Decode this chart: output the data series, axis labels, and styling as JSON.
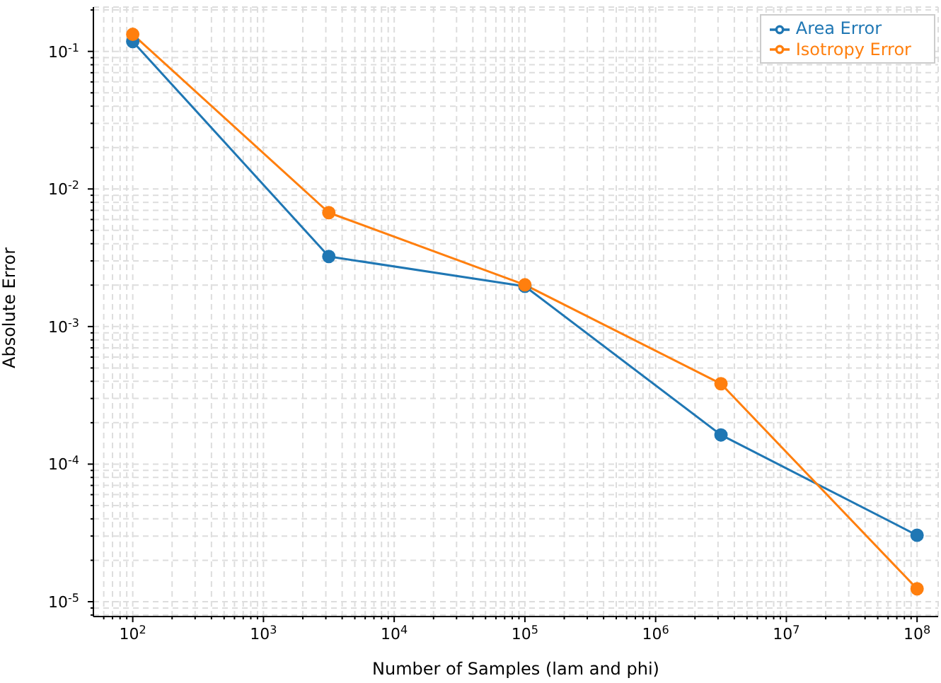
{
  "chart_data": {
    "type": "line",
    "xlabel": "Number of Samples (lam and phi)",
    "ylabel": "Absolute Error",
    "log": "xy",
    "grid": true,
    "legend": "top right",
    "marker": "circle",
    "line_style": "solid",
    "x": [
      100,
      3162,
      100000,
      3162000,
      100000000
    ],
    "series": [
      {
        "name": "Area Error",
        "color": "#1f77b4",
        "values": [
          0.118,
          0.00323,
          0.00196,
          0.000163,
          3.04e-05
        ]
      },
      {
        "name": "Isotropy Error",
        "color": "#ff7f0e",
        "values": [
          0.133,
          0.00673,
          0.00201,
          0.000384,
          1.24e-05
        ]
      }
    ],
    "xlim": [
      50,
      145000000
    ],
    "xticks": [
      {
        "value": 60,
        "label": null
      },
      {
        "value": 70,
        "label": null
      },
      {
        "value": 80,
        "label": null
      },
      {
        "value": 90,
        "label": null
      },
      {
        "value": 100,
        "label": "10$^{2}$"
      },
      {
        "value": 200,
        "label": null
      },
      {
        "value": 300,
        "label": null
      },
      {
        "value": 400,
        "label": null
      },
      {
        "value": 500,
        "label": null
      },
      {
        "value": 600,
        "label": null
      },
      {
        "value": 700,
        "label": null
      },
      {
        "value": 800,
        "label": null
      },
      {
        "value": 900,
        "label": null
      },
      {
        "value": 1000,
        "label": "10$^{3}$"
      },
      {
        "value": 2000,
        "label": null
      },
      {
        "value": 3000,
        "label": null
      },
      {
        "value": 4000,
        "label": null
      },
      {
        "value": 5000,
        "label": null
      },
      {
        "value": 6000,
        "label": null
      },
      {
        "value": 7000,
        "label": null
      },
      {
        "value": 8000,
        "label": null
      },
      {
        "value": 9000,
        "label": null
      },
      {
        "value": 10000,
        "label": "10$^{4}$"
      },
      {
        "value": 20000,
        "label": null
      },
      {
        "value": 30000,
        "label": null
      },
      {
        "value": 40000,
        "label": null
      },
      {
        "value": 50000,
        "label": null
      },
      {
        "value": 60000,
        "label": null
      },
      {
        "value": 70000,
        "label": null
      },
      {
        "value": 80000,
        "label": null
      },
      {
        "value": 90000,
        "label": null
      },
      {
        "value": 100000,
        "label": "10$^{5}$"
      },
      {
        "value": 200000,
        "label": null
      },
      {
        "value": 300000,
        "label": null
      },
      {
        "value": 400000,
        "label": null
      },
      {
        "value": 500000,
        "label": null
      },
      {
        "value": 600000,
        "label": null
      },
      {
        "value": 700000,
        "label": null
      },
      {
        "value": 800000,
        "label": null
      },
      {
        "value": 900000,
        "label": null
      },
      {
        "value": 1000000,
        "label": "10$^{6}$"
      },
      {
        "value": 2000000,
        "label": null
      },
      {
        "value": 3000000,
        "label": null
      },
      {
        "value": 4000000,
        "label": null
      },
      {
        "value": 5000000,
        "label": null
      },
      {
        "value": 6000000,
        "label": null
      },
      {
        "value": 7000000,
        "label": null
      },
      {
        "value": 8000000,
        "label": null
      },
      {
        "value": 9000000,
        "label": null
      },
      {
        "value": 10000000,
        "label": "10$^{7}$"
      },
      {
        "value": 20000000,
        "label": null
      },
      {
        "value": 30000000,
        "label": null
      },
      {
        "value": 40000000,
        "label": null
      },
      {
        "value": 50000000,
        "label": null
      },
      {
        "value": 60000000,
        "label": null
      },
      {
        "value": 70000000,
        "label": null
      },
      {
        "value": 80000000,
        "label": null
      },
      {
        "value": 90000000,
        "label": null
      },
      {
        "value": 100000000,
        "label": "10$^{8}$"
      }
    ],
    "ylim": [
      7.8e-06,
      0.21
    ],
    "yticks": [
      {
        "value": 8e-06,
        "label": null
      },
      {
        "value": 9e-06,
        "label": null
      },
      {
        "value": 1e-05,
        "label": "10$^{-5}$"
      },
      {
        "value": 2e-05,
        "label": null
      },
      {
        "value": 3e-05,
        "label": null
      },
      {
        "value": 4e-05,
        "label": null
      },
      {
        "value": 5e-05,
        "label": null
      },
      {
        "value": 6e-05,
        "label": null
      },
      {
        "value": 7e-05,
        "label": null
      },
      {
        "value": 8e-05,
        "label": null
      },
      {
        "value": 9e-05,
        "label": null
      },
      {
        "value": 0.0001,
        "label": "10$^{-4}$"
      },
      {
        "value": 0.0002,
        "label": null
      },
      {
        "value": 0.0003,
        "label": null
      },
      {
        "value": 0.0004,
        "label": null
      },
      {
        "value": 0.0005,
        "label": null
      },
      {
        "value": 0.0006,
        "label": null
      },
      {
        "value": 0.0007,
        "label": null
      },
      {
        "value": 0.0008,
        "label": null
      },
      {
        "value": 0.0009,
        "label": null
      },
      {
        "value": 0.001,
        "label": "10$^{-3}$"
      },
      {
        "value": 0.002,
        "label": null
      },
      {
        "value": 0.003,
        "label": null
      },
      {
        "value": 0.004,
        "label": null
      },
      {
        "value": 0.005,
        "label": null
      },
      {
        "value": 0.006,
        "label": null
      },
      {
        "value": 0.007,
        "label": null
      },
      {
        "value": 0.008,
        "label": null
      },
      {
        "value": 0.009,
        "label": null
      },
      {
        "value": 0.01,
        "label": "10$^{-2}$"
      },
      {
        "value": 0.02,
        "label": null
      },
      {
        "value": 0.03,
        "label": null
      },
      {
        "value": 0.04,
        "label": null
      },
      {
        "value": 0.05,
        "label": null
      },
      {
        "value": 0.06,
        "label": null
      },
      {
        "value": 0.07,
        "label": null
      },
      {
        "value": 0.08,
        "label": null
      },
      {
        "value": 0.09,
        "label": null
      },
      {
        "value": 0.1,
        "label": "10$^{-1}$"
      },
      {
        "value": 0.2,
        "label": null
      }
    ]
  }
}
